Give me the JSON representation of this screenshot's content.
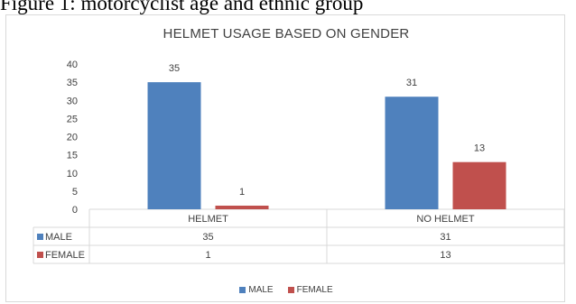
{
  "caption": "Figure 1: motorcyclist age and ethnic group",
  "chart_data": {
    "type": "bar",
    "title": "HELMET USAGE BASED ON GENDER",
    "categories": [
      "HELMET",
      "NO HELMET"
    ],
    "series": [
      {
        "name": "MALE",
        "values": [
          35,
          31
        ],
        "color": "#4f81bd"
      },
      {
        "name": "FEMALE",
        "values": [
          1,
          13
        ],
        "color": "#c0504d"
      }
    ],
    "ylim": [
      0,
      40
    ],
    "yticks": [
      0,
      5,
      10,
      15,
      20,
      25,
      30,
      35,
      40
    ],
    "data_labels": true,
    "data_table": true,
    "legend": "bottom",
    "grid": false
  }
}
